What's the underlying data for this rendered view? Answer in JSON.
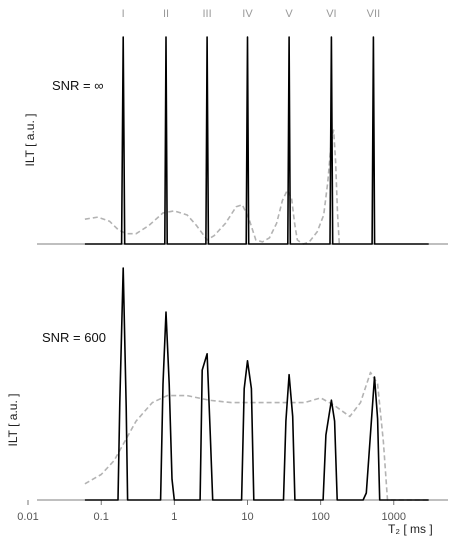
{
  "chart_data": [
    {
      "type": "line",
      "panel": "top",
      "annotation": "SNR = ∞",
      "ylabel": "ILT [ a.u. ]",
      "xscale": "log",
      "xlim": [
        0.01,
        10000
      ],
      "ylim": [
        0,
        1.08
      ],
      "peak_labels": [
        "I",
        "II",
        "III",
        "IV",
        "V",
        "VI",
        "VII"
      ],
      "series": [
        {
          "style": "solid",
          "color": "#000000",
          "x": [
            0.06,
            0.19,
            0.2,
            0.21,
            0.74,
            0.77,
            0.8,
            2.7,
            2.8,
            2.92,
            9.6,
            10,
            10.4,
            35.5,
            37,
            38.5,
            134,
            140,
            146,
            504,
            525,
            546,
            3000
          ],
          "y": [
            0,
            0,
            1,
            0,
            0,
            1,
            0,
            0,
            1,
            0,
            0,
            1,
            0,
            0,
            1,
            0,
            0,
            1,
            0,
            0,
            1,
            0,
            0
          ]
        },
        {
          "style": "dashed",
          "color": "#b3b3b3",
          "x": [
            0.06,
            0.09,
            0.13,
            0.17,
            0.22,
            0.3,
            0.45,
            0.7,
            1.0,
            1.5,
            2.0,
            2.8,
            3.5,
            5,
            7,
            8.5,
            10.5,
            13,
            16,
            20,
            25,
            30,
            35,
            40,
            44,
            48,
            52,
            58,
            70,
            90,
            110,
            125,
            140,
            150,
            160,
            170,
            180
          ],
          "y": [
            0.12,
            0.13,
            0.11,
            0.07,
            0.05,
            0.05,
            0.09,
            0.15,
            0.16,
            0.14,
            0.09,
            0.02,
            0.04,
            0.1,
            0.18,
            0.19,
            0.12,
            0.02,
            0.01,
            0.03,
            0.1,
            0.21,
            0.26,
            0.22,
            0.1,
            0.02,
            0.01,
            0.0,
            0.01,
            0.06,
            0.14,
            0.3,
            0.5,
            0.55,
            0.4,
            0.15,
            0.0
          ]
        }
      ]
    },
    {
      "type": "line",
      "panel": "bottom",
      "annotation": "SNR = 600",
      "ylabel": "ILT [ a.u. ]",
      "xlabel": "T₂ [ ms ]",
      "xscale": "log",
      "xlim": [
        0.01,
        10000
      ],
      "ylim": [
        0,
        1.08
      ],
      "tick_labels": [
        "0.01",
        "0.1",
        "1",
        "10",
        "100",
        "1000"
      ],
      "tick_values": [
        0.01,
        0.1,
        1,
        10,
        100,
        1000
      ],
      "series": [
        {
          "style": "solid",
          "color": "#000000",
          "x": [
            0.06,
            0.17,
            0.18,
            0.2,
            0.22,
            0.23,
            0.65,
            0.7,
            0.77,
            0.85,
            0.93,
            1.0,
            2.25,
            2.4,
            2.8,
            3.1,
            3.35,
            8.3,
            9.0,
            10,
            11.3,
            12.2,
            31,
            33.5,
            37,
            41.5,
            44.5,
            108,
            118,
            140,
            155,
            168,
            380,
            420,
            545,
            600,
            640,
            3000
          ],
          "y": [
            0,
            0,
            0.42,
            1.0,
            0.4,
            0,
            0,
            0.5,
            0.81,
            0.5,
            0.09,
            0,
            0,
            0.56,
            0.63,
            0.28,
            0,
            0,
            0.48,
            0.6,
            0.48,
            0,
            0,
            0.34,
            0.54,
            0.36,
            0,
            0,
            0.28,
            0.43,
            0.34,
            0,
            0,
            0.03,
            0.53,
            0.35,
            0,
            0
          ]
        },
        {
          "style": "dashed",
          "color": "#b3b3b3",
          "x": [
            0.06,
            0.1,
            0.15,
            0.2,
            0.3,
            0.5,
            0.8,
            1.5,
            3,
            6,
            10,
            20,
            40,
            60,
            100,
            150,
            250,
            350,
            480,
            600,
            720,
            820,
            3000
          ],
          "y": [
            0.07,
            0.11,
            0.17,
            0.24,
            0.34,
            0.42,
            0.45,
            0.45,
            0.43,
            0.42,
            0.42,
            0.42,
            0.42,
            0.42,
            0.44,
            0.41,
            0.36,
            0.42,
            0.55,
            0.5,
            0.25,
            0,
            0
          ]
        }
      ]
    }
  ]
}
